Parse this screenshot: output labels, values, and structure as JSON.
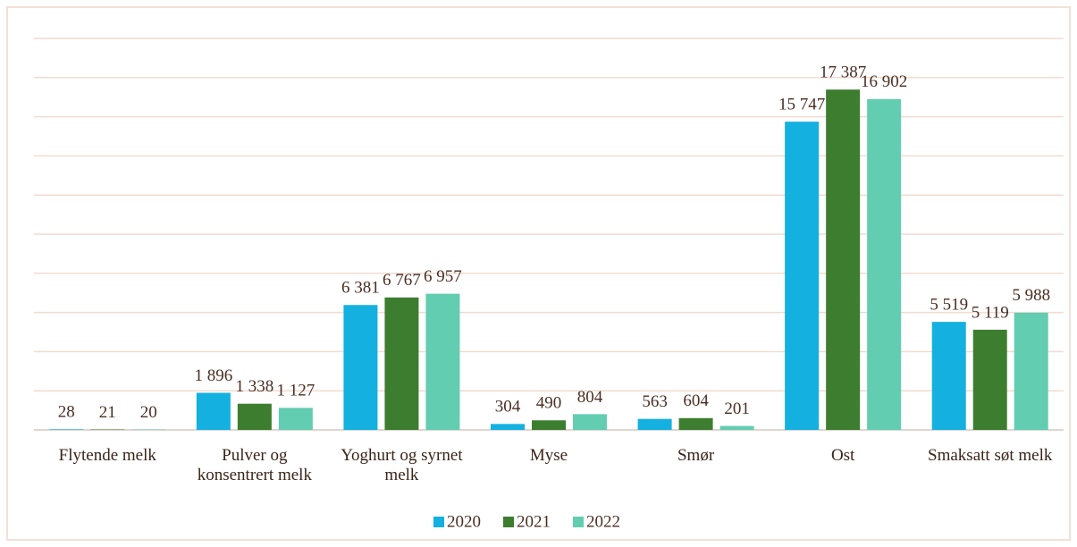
{
  "chart_data": {
    "type": "bar",
    "categories": [
      "Flytende melk",
      "Pulver og konsentrert melk",
      "Yoghurt og syrnet melk",
      "Myse",
      "Smør",
      "Ost",
      "Smaksatt søt melk"
    ],
    "series": [
      {
        "name": "2020",
        "color": "#14b0e0",
        "values": [
          28,
          1896,
          6381,
          304,
          563,
          15747,
          5519
        ],
        "value_labels": [
          "28",
          "1 896",
          "6 381",
          "304",
          "563",
          "15 747",
          "5 519"
        ]
      },
      {
        "name": "2021",
        "color": "#3d7d30",
        "values": [
          21,
          1338,
          6767,
          490,
          604,
          17387,
          5119
        ],
        "value_labels": [
          "21",
          "1 338",
          "6 767",
          "490",
          "604",
          "17 387",
          "5 119"
        ]
      },
      {
        "name": "2022",
        "color": "#62cdb0",
        "values": [
          20,
          1127,
          6957,
          804,
          201,
          16902,
          5988
        ],
        "value_labels": [
          "20",
          "1 127",
          "6 957",
          "804",
          "201",
          "16 902",
          "5 988"
        ]
      }
    ],
    "ylim": [
      0,
      20000
    ],
    "yticks": [
      0,
      2000,
      4000,
      6000,
      8000,
      10000,
      12000,
      14000,
      16000,
      18000,
      20000
    ],
    "grid": true,
    "legend": "bottom"
  }
}
